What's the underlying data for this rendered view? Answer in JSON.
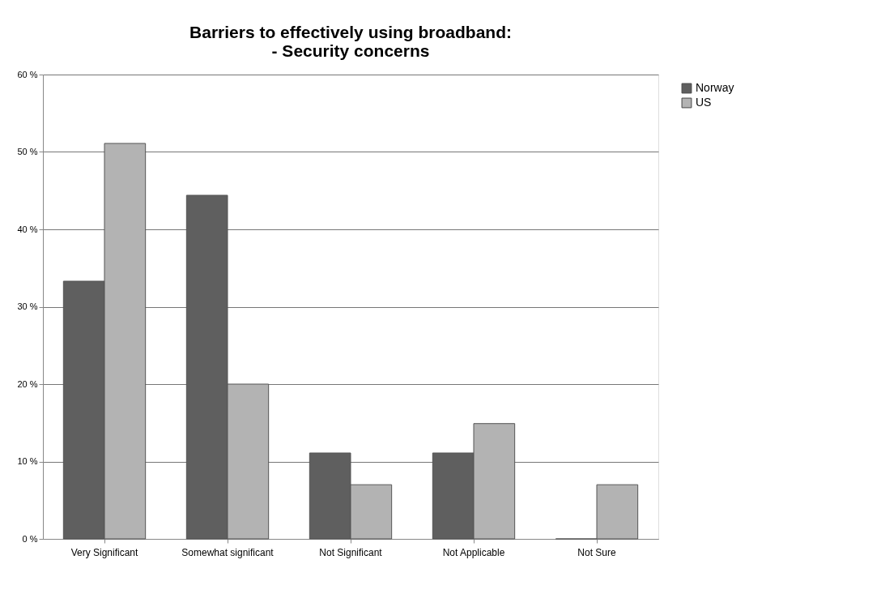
{
  "chart_data": {
    "type": "bar",
    "title": [
      "Barriers to effectively using broadband:",
      "- Security concerns"
    ],
    "categories": [
      "Very Significant",
      "Somewhat significant",
      "Not Significant",
      "Not Applicable",
      "Not Sure"
    ],
    "series": [
      {
        "name": "Norway",
        "color": "#5f5f5f",
        "values": [
          33.3,
          44.4,
          11.1,
          11.1,
          0
        ]
      },
      {
        "name": "US",
        "color": "#b3b3b3",
        "values": [
          51.1,
          20,
          7,
          14.9,
          7
        ]
      }
    ],
    "ylim": [
      0,
      60
    ],
    "yticks": [
      {
        "value": 0,
        "label": "0 %"
      },
      {
        "value": 10,
        "label": "10 %"
      },
      {
        "value": 20,
        "label": "20 %"
      },
      {
        "value": 30,
        "label": "30 %"
      },
      {
        "value": 40,
        "label": "40 %"
      },
      {
        "value": 50,
        "label": "50 %"
      },
      {
        "value": 60,
        "label": "60 %"
      }
    ],
    "grid": "y",
    "legend": "right"
  }
}
